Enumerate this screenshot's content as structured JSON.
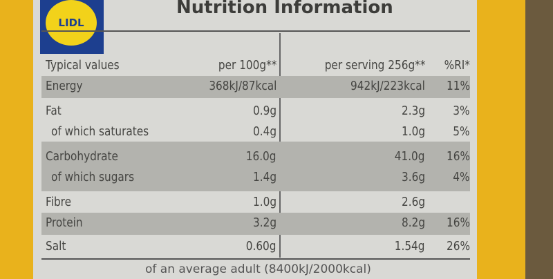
{
  "logo": "LIDL",
  "title": "Nutrition Information",
  "table": {
    "header": [
      "Typical values",
      "per 100g**",
      "per serving 256g**",
      "%RI*"
    ],
    "rows": [
      [
        "Energy",
        "368kJ/87kcal",
        "942kJ/223kcal",
        "11%"
      ],
      [
        "Fat",
        "0.9g",
        "2.3g",
        "3%"
      ],
      [
        "of which saturates",
        "0.4g",
        "1.0g",
        "5%"
      ],
      [
        "Carbohydrate",
        "16.0g",
        "41.0g",
        "16%"
      ],
      [
        "of which sugars",
        "1.4g",
        "3.6g",
        "4%"
      ],
      [
        "Fibre",
        "1.0g",
        "2.6g"
      ],
      [
        "Protein",
        "3.2g",
        "8.2g",
        "16%"
      ],
      [
        "Salt",
        "0.60g",
        "1.54g",
        "26%"
      ]
    ]
  },
  "footer": "of an average adult (8400kJ/2000kcal)"
}
